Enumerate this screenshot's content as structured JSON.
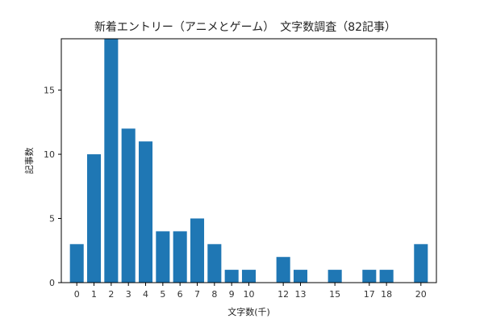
{
  "chart_data": {
    "type": "bar",
    "title": "新着エントリー（アニメとゲーム）　文字数調査（82記事）",
    "xlabel": "文字数(千)",
    "ylabel": "記事数",
    "x": [
      0,
      1,
      2,
      3,
      4,
      5,
      6,
      7,
      8,
      9,
      10,
      12,
      13,
      15,
      17,
      18,
      20
    ],
    "values": [
      3,
      10,
      19,
      12,
      11,
      4,
      4,
      5,
      3,
      1,
      1,
      2,
      1,
      1,
      1,
      1,
      3
    ],
    "xticks": [
      "0",
      "1",
      "2",
      "3",
      "4",
      "5",
      "6",
      "7",
      "8",
      "9",
      "10",
      "12",
      "13",
      "15",
      "17",
      "18",
      "20"
    ],
    "yticks": [
      "0",
      "5",
      "10",
      "15"
    ],
    "ylim": [
      0,
      19
    ],
    "xlim": [
      -0.9,
      20.9
    ],
    "grid": false,
    "legend": "none",
    "bar_color": "#1f77b4"
  }
}
